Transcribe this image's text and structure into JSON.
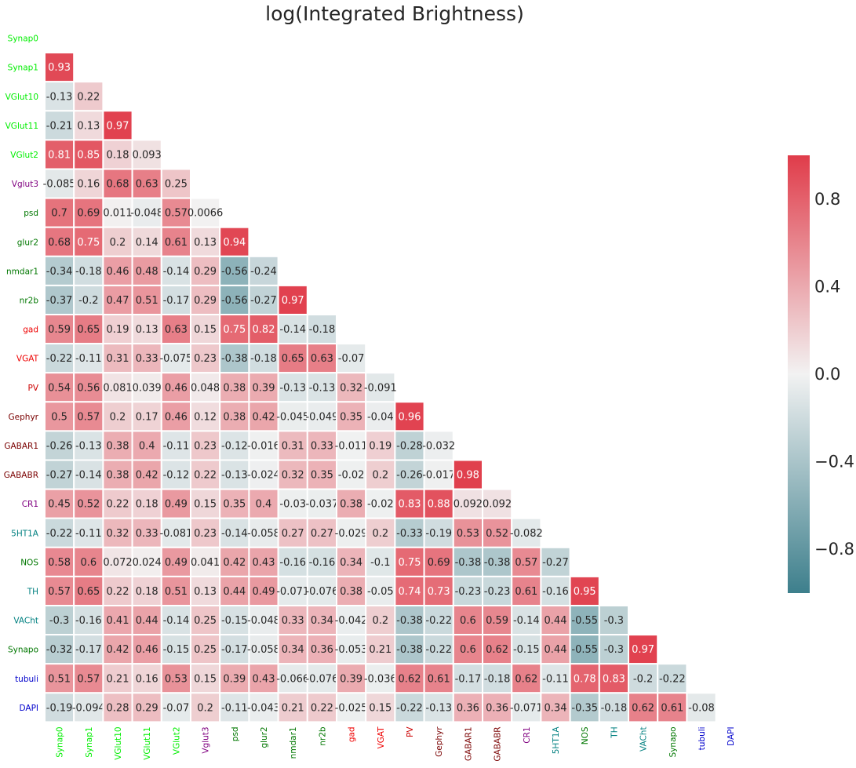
{
  "chart_data": {
    "type": "heatmap",
    "title": "log(Integrated Brightness)",
    "labels": [
      "Synap0",
      "Synap1",
      "VGlut10",
      "VGlut11",
      "VGlut2",
      "Vglut3",
      "psd",
      "glur2",
      "nmdar1",
      "nr2b",
      "gad",
      "VGAT",
      "PV",
      "Gephyr",
      "GABAR1",
      "GABABR",
      "CR1",
      "5HT1A",
      "NOS",
      "TH",
      "VACht",
      "Synapo",
      "tubuli",
      "DAPI"
    ],
    "label_colors": [
      "#00ee00",
      "#00ee00",
      "#00ee00",
      "#00ee00",
      "#00ee00",
      "#800080",
      "#007700",
      "#007700",
      "#007700",
      "#007700",
      "#ee0000",
      "#ee0000",
      "#cc0000",
      "#7a0000",
      "#7a0000",
      "#7a0000",
      "#800080",
      "#008080",
      "#007700",
      "#008080",
      "#008080",
      "#007700",
      "#0000cc",
      "#0000cc"
    ],
    "rows": [
      [],
      [
        "0.93"
      ],
      [
        "-0.13",
        "0.22"
      ],
      [
        "-0.21",
        "0.13",
        "0.97"
      ],
      [
        "0.81",
        "0.85",
        "0.18",
        "0.093"
      ],
      [
        "-0.085",
        "0.16",
        "0.68",
        "0.63",
        "0.25"
      ],
      [
        "0.7",
        "0.69",
        "0.011",
        "-0.048",
        "0.57",
        "0.0066"
      ],
      [
        "0.68",
        "0.75",
        "0.2",
        "0.14",
        "0.61",
        "0.13",
        "0.94"
      ],
      [
        "-0.34",
        "-0.18",
        "0.46",
        "0.48",
        "-0.14",
        "0.29",
        "-0.56",
        "-0.24"
      ],
      [
        "-0.37",
        "-0.2",
        "0.47",
        "0.51",
        "-0.17",
        "0.29",
        "-0.56",
        "-0.27",
        "0.97"
      ],
      [
        "0.59",
        "0.65",
        "0.19",
        "0.13",
        "0.63",
        "0.15",
        "0.75",
        "0.82",
        "-0.14",
        "-0.18"
      ],
      [
        "-0.22",
        "-0.11",
        "0.31",
        "0.33",
        "-0.075",
        "0.23",
        "-0.38",
        "-0.18",
        "0.65",
        "0.63",
        "-0.07"
      ],
      [
        "0.54",
        "0.56",
        "0.081",
        "0.039",
        "0.46",
        "0.048",
        "0.38",
        "0.39",
        "-0.13",
        "-0.13",
        "0.32",
        "-0.091"
      ],
      [
        "0.5",
        "0.57",
        "0.2",
        "0.17",
        "0.46",
        "0.12",
        "0.38",
        "0.42",
        "-0.045",
        "-0.049",
        "0.35",
        "-0.04",
        "0.96"
      ],
      [
        "-0.26",
        "-0.13",
        "0.38",
        "0.4",
        "-0.11",
        "0.23",
        "-0.12",
        "-0.016",
        "0.31",
        "0.33",
        "-0.011",
        "0.19",
        "-0.28",
        "-0.032"
      ],
      [
        "-0.27",
        "-0.14",
        "0.38",
        "0.42",
        "-0.12",
        "0.22",
        "-0.13",
        "-0.024",
        "0.32",
        "0.35",
        "-0.02",
        "0.2",
        "-0.26",
        "-0.017",
        "0.98"
      ],
      [
        "0.45",
        "0.52",
        "0.22",
        "0.18",
        "0.49",
        "0.15",
        "0.35",
        "0.4",
        "-0.03",
        "-0.037",
        "0.38",
        "-0.02",
        "0.83",
        "0.88",
        "0.092",
        "0.092"
      ],
      [
        "-0.22",
        "-0.11",
        "0.32",
        "0.33",
        "-0.081",
        "0.23",
        "-0.14",
        "-0.058",
        "0.27",
        "0.27",
        "-0.029",
        "0.2",
        "-0.33",
        "-0.19",
        "0.53",
        "0.52",
        "-0.082"
      ],
      [
        "0.58",
        "0.6",
        "0.072",
        "0.024",
        "0.49",
        "0.041",
        "0.42",
        "0.43",
        "-0.16",
        "-0.16",
        "0.34",
        "-0.1",
        "0.75",
        "0.69",
        "-0.38",
        "-0.38",
        "0.57",
        "-0.27"
      ],
      [
        "0.57",
        "0.65",
        "0.22",
        "0.18",
        "0.51",
        "0.13",
        "0.44",
        "0.49",
        "-0.071",
        "-0.076",
        "0.38",
        "-0.05",
        "0.74",
        "0.73",
        "-0.23",
        "-0.23",
        "0.61",
        "-0.16",
        "0.95"
      ],
      [
        "-0.3",
        "-0.16",
        "0.41",
        "0.44",
        "-0.14",
        "0.25",
        "-0.15",
        "-0.048",
        "0.33",
        "0.34",
        "-0.042",
        "0.2",
        "-0.38",
        "-0.22",
        "0.6",
        "0.59",
        "-0.14",
        "0.44",
        "-0.55",
        "-0.3"
      ],
      [
        "-0.32",
        "-0.17",
        "0.42",
        "0.46",
        "-0.15",
        "0.25",
        "-0.17",
        "-0.058",
        "0.34",
        "0.36",
        "-0.053",
        "0.21",
        "-0.38",
        "-0.22",
        "0.6",
        "0.62",
        "-0.15",
        "0.44",
        "-0.55",
        "-0.3",
        "0.97"
      ],
      [
        "0.51",
        "0.57",
        "0.21",
        "0.16",
        "0.53",
        "0.15",
        "0.39",
        "0.43",
        "-0.066",
        "-0.076",
        "0.39",
        "-0.036",
        "0.62",
        "0.61",
        "-0.17",
        "-0.18",
        "0.62",
        "-0.11",
        "0.78",
        "0.83",
        "-0.2",
        "-0.22"
      ],
      [
        "-0.19",
        "-0.094",
        "0.28",
        "0.29",
        "-0.07",
        "0.2",
        "-0.11",
        "-0.043",
        "0.21",
        "0.22",
        "-0.025",
        "0.15",
        "-0.22",
        "-0.13",
        "0.36",
        "0.36",
        "-0.071",
        "0.34",
        "-0.35",
        "-0.18",
        "0.62",
        "0.61",
        "-0.08"
      ]
    ],
    "colorbar": {
      "vmin": -1,
      "vmax": 1,
      "ticks": [
        0.8,
        0.4,
        0.0,
        -0.4,
        -0.8
      ],
      "tick_labels": [
        "0.8",
        "0.4",
        "0.0",
        "−0.4",
        "−0.8"
      ],
      "colors": {
        "negative": "#3d7f8c",
        "center": "#f2f2f2",
        "positive": "#e03c4a"
      }
    },
    "triangle": "lower",
    "grid": false
  }
}
